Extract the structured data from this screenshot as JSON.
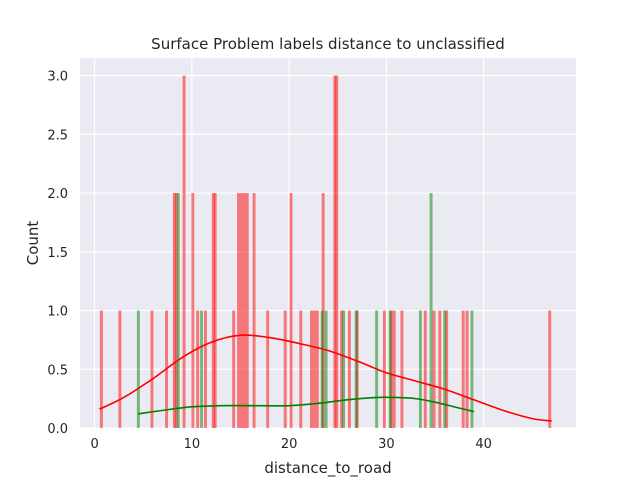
{
  "chart_data": {
    "type": "bar",
    "title": "Surface Problem labels distance to unclassified",
    "xlabel": "distance_to_road",
    "ylabel": "Count",
    "xlim": [
      -1.5,
      49.5
    ],
    "ylim": [
      0,
      3.15
    ],
    "xticks": [
      0,
      10,
      20,
      30,
      40
    ],
    "yticks": [
      0.0,
      0.5,
      1.0,
      1.5,
      2.0,
      2.5,
      3.0
    ],
    "grid": true,
    "bin_width": 0.3,
    "series": [
      {
        "color": "#ff0000",
        "bars": [
          [
            0.7,
            1
          ],
          [
            2.6,
            1
          ],
          [
            5.9,
            1
          ],
          [
            7.4,
            1
          ],
          [
            8.2,
            2
          ],
          [
            8.4,
            2
          ],
          [
            9.2,
            3
          ],
          [
            10.1,
            2
          ],
          [
            10.6,
            1
          ],
          [
            11.4,
            1
          ],
          [
            12.2,
            2
          ],
          [
            12.4,
            2
          ],
          [
            14.3,
            1
          ],
          [
            14.8,
            2
          ],
          [
            15.1,
            2
          ],
          [
            15.4,
            2
          ],
          [
            15.7,
            2
          ],
          [
            16.4,
            2
          ],
          [
            17.8,
            1
          ],
          [
            19.6,
            1
          ],
          [
            20.2,
            2
          ],
          [
            21.2,
            1
          ],
          [
            22.3,
            1
          ],
          [
            22.6,
            1
          ],
          [
            22.9,
            1
          ],
          [
            23.5,
            2
          ],
          [
            24.7,
            3
          ],
          [
            24.9,
            3
          ],
          [
            25.4,
            1
          ],
          [
            26.2,
            1
          ],
          [
            27.0,
            1
          ],
          [
            29.8,
            1
          ],
          [
            30.5,
            1
          ],
          [
            30.8,
            1
          ],
          [
            31.6,
            1
          ],
          [
            34.0,
            1
          ],
          [
            34.9,
            1
          ],
          [
            35.5,
            1
          ],
          [
            36.2,
            1
          ],
          [
            37.9,
            1
          ],
          [
            38.3,
            1
          ],
          [
            46.8,
            1
          ]
        ],
        "kde": [
          [
            0.5,
            0.16
          ],
          [
            3,
            0.26
          ],
          [
            6,
            0.42
          ],
          [
            9,
            0.6
          ],
          [
            12,
            0.73
          ],
          [
            15,
            0.79
          ],
          [
            18,
            0.77
          ],
          [
            21,
            0.72
          ],
          [
            24,
            0.66
          ],
          [
            27,
            0.57
          ],
          [
            30,
            0.47
          ],
          [
            33,
            0.4
          ],
          [
            36,
            0.33
          ],
          [
            39,
            0.24
          ],
          [
            42,
            0.15
          ],
          [
            45,
            0.08
          ],
          [
            47,
            0.06
          ]
        ]
      },
      {
        "color": "#008000",
        "bars": [
          [
            4.5,
            1
          ],
          [
            8.6,
            2
          ],
          [
            11.0,
            1
          ],
          [
            23.4,
            1
          ],
          [
            23.8,
            1
          ],
          [
            25.6,
            1
          ],
          [
            26.9,
            1
          ],
          [
            29.0,
            1
          ],
          [
            30.4,
            1
          ],
          [
            33.5,
            1
          ],
          [
            34.6,
            2
          ],
          [
            36.0,
            1
          ],
          [
            38.8,
            1
          ]
        ],
        "kde": [
          [
            4.5,
            0.12
          ],
          [
            7,
            0.15
          ],
          [
            10,
            0.18
          ],
          [
            13,
            0.19
          ],
          [
            17,
            0.19
          ],
          [
            20,
            0.19
          ],
          [
            23,
            0.21
          ],
          [
            26,
            0.24
          ],
          [
            29,
            0.26
          ],
          [
            31,
            0.26
          ],
          [
            33,
            0.25
          ],
          [
            35,
            0.22
          ],
          [
            37,
            0.18
          ],
          [
            39,
            0.14
          ]
        ]
      }
    ]
  }
}
